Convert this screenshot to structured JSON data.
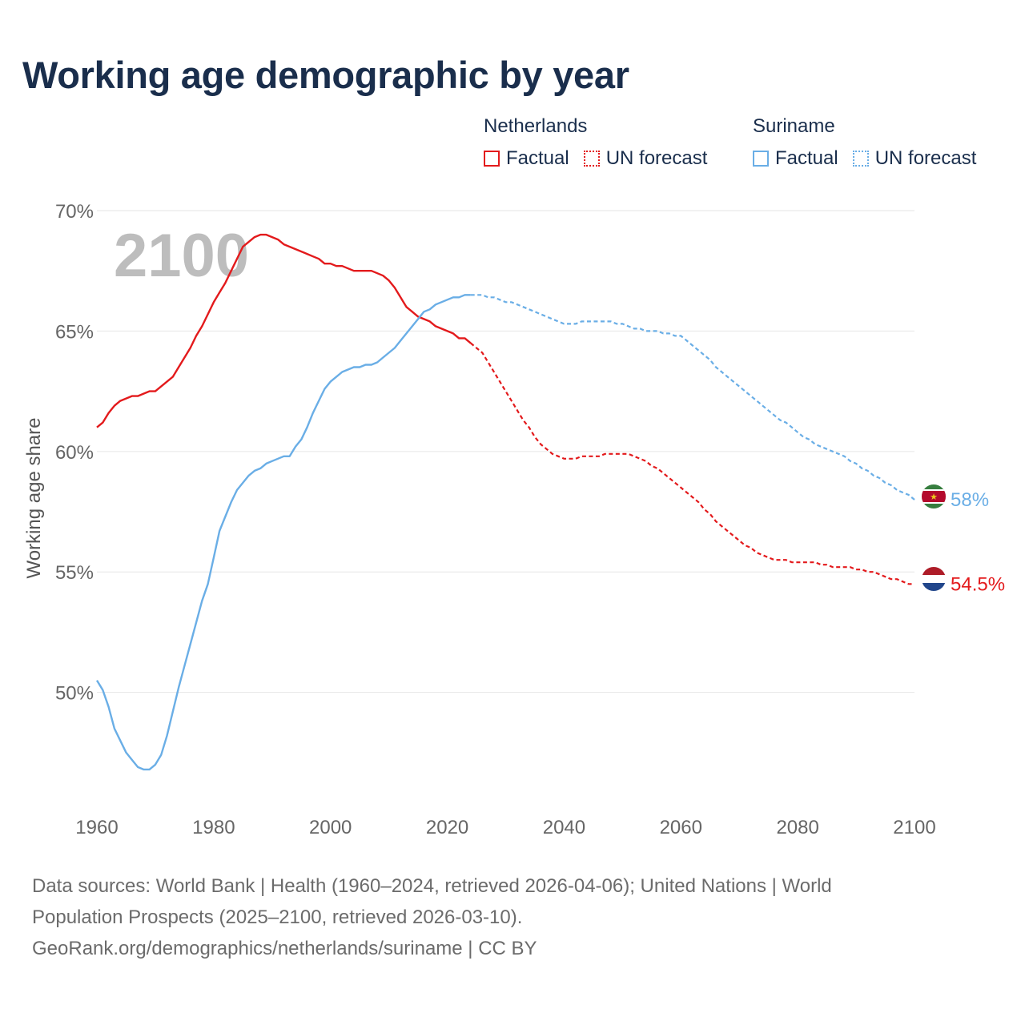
{
  "title": "Working age demographic by year",
  "legend": {
    "groups": [
      {
        "name": "Netherlands",
        "color": "#e31a1c",
        "factual_label": "Factual",
        "forecast_label": "UN forecast"
      },
      {
        "name": "Suriname",
        "color": "#6aaee6",
        "factual_label": "Factual",
        "forecast_label": "UN forecast"
      }
    ]
  },
  "footer": {
    "line1": "Data sources: World Bank | Health (1960–2024, retrieved 2026-04-06); United Nations | World",
    "line2": "Population Prospects (2025–2100, retrieved 2026-03-10).",
    "line3": "GeoRank.org/demographics/netherlands/suriname | CC BY"
  },
  "chart_data": {
    "type": "line",
    "title": "Working age demographic by year",
    "xlabel": "",
    "ylabel": "Working age share",
    "xlim": [
      1960,
      2100
    ],
    "ylim": [
      45.5,
      70
    ],
    "x_ticks": [
      1960,
      1980,
      2000,
      2020,
      2040,
      2060,
      2080,
      2100
    ],
    "y_ticks": [
      50,
      55,
      60,
      65,
      70
    ],
    "y_tick_labels": [
      "50%",
      "55%",
      "60%",
      "65%",
      "70%"
    ],
    "grid": true,
    "year_watermark": "2100",
    "forecast_start": 2024,
    "series": [
      {
        "name": "Netherlands",
        "color": "#e31a1c",
        "end_label": "54.5%",
        "points": [
          [
            1960,
            61.0
          ],
          [
            1961,
            61.2
          ],
          [
            1962,
            61.6
          ],
          [
            1963,
            61.9
          ],
          [
            1964,
            62.1
          ],
          [
            1965,
            62.2
          ],
          [
            1966,
            62.3
          ],
          [
            1967,
            62.3
          ],
          [
            1968,
            62.4
          ],
          [
            1969,
            62.5
          ],
          [
            1970,
            62.5
          ],
          [
            1971,
            62.7
          ],
          [
            1972,
            62.9
          ],
          [
            1973,
            63.1
          ],
          [
            1974,
            63.5
          ],
          [
            1975,
            63.9
          ],
          [
            1976,
            64.3
          ],
          [
            1977,
            64.8
          ],
          [
            1978,
            65.2
          ],
          [
            1979,
            65.7
          ],
          [
            1980,
            66.2
          ],
          [
            1981,
            66.6
          ],
          [
            1982,
            67.0
          ],
          [
            1983,
            67.5
          ],
          [
            1984,
            68.0
          ],
          [
            1985,
            68.5
          ],
          [
            1986,
            68.7
          ],
          [
            1987,
            68.9
          ],
          [
            1988,
            69.0
          ],
          [
            1989,
            69.0
          ],
          [
            1990,
            68.9
          ],
          [
            1991,
            68.8
          ],
          [
            1992,
            68.6
          ],
          [
            1993,
            68.5
          ],
          [
            1994,
            68.4
          ],
          [
            1995,
            68.3
          ],
          [
            1996,
            68.2
          ],
          [
            1997,
            68.1
          ],
          [
            1998,
            68.0
          ],
          [
            1999,
            67.8
          ],
          [
            2000,
            67.8
          ],
          [
            2001,
            67.7
          ],
          [
            2002,
            67.7
          ],
          [
            2003,
            67.6
          ],
          [
            2004,
            67.5
          ],
          [
            2005,
            67.5
          ],
          [
            2006,
            67.5
          ],
          [
            2007,
            67.5
          ],
          [
            2008,
            67.4
          ],
          [
            2009,
            67.3
          ],
          [
            2010,
            67.1
          ],
          [
            2011,
            66.8
          ],
          [
            2012,
            66.4
          ],
          [
            2013,
            66.0
          ],
          [
            2014,
            65.8
          ],
          [
            2015,
            65.6
          ],
          [
            2016,
            65.5
          ],
          [
            2017,
            65.4
          ],
          [
            2018,
            65.2
          ],
          [
            2019,
            65.1
          ],
          [
            2020,
            65.0
          ],
          [
            2021,
            64.9
          ],
          [
            2022,
            64.7
          ],
          [
            2023,
            64.7
          ],
          [
            2024,
            64.5
          ],
          [
            2025,
            64.3
          ],
          [
            2026,
            64.1
          ],
          [
            2027,
            63.7
          ],
          [
            2028,
            63.3
          ],
          [
            2029,
            62.9
          ],
          [
            2030,
            62.5
          ],
          [
            2031,
            62.1
          ],
          [
            2032,
            61.7
          ],
          [
            2033,
            61.3
          ],
          [
            2034,
            61.0
          ],
          [
            2035,
            60.6
          ],
          [
            2036,
            60.3
          ],
          [
            2037,
            60.1
          ],
          [
            2038,
            59.9
          ],
          [
            2039,
            59.8
          ],
          [
            2040,
            59.7
          ],
          [
            2041,
            59.7
          ],
          [
            2042,
            59.7
          ],
          [
            2043,
            59.8
          ],
          [
            2044,
            59.8
          ],
          [
            2045,
            59.8
          ],
          [
            2046,
            59.8
          ],
          [
            2047,
            59.9
          ],
          [
            2048,
            59.9
          ],
          [
            2049,
            59.9
          ],
          [
            2050,
            59.9
          ],
          [
            2051,
            59.9
          ],
          [
            2052,
            59.8
          ],
          [
            2053,
            59.7
          ],
          [
            2054,
            59.6
          ],
          [
            2055,
            59.4
          ],
          [
            2056,
            59.3
          ],
          [
            2057,
            59.1
          ],
          [
            2058,
            58.9
          ],
          [
            2059,
            58.7
          ],
          [
            2060,
            58.5
          ],
          [
            2061,
            58.3
          ],
          [
            2062,
            58.1
          ],
          [
            2063,
            57.9
          ],
          [
            2064,
            57.6
          ],
          [
            2065,
            57.4
          ],
          [
            2066,
            57.1
          ],
          [
            2067,
            56.9
          ],
          [
            2068,
            56.7
          ],
          [
            2069,
            56.5
          ],
          [
            2070,
            56.3
          ],
          [
            2071,
            56.1
          ],
          [
            2072,
            56.0
          ],
          [
            2073,
            55.8
          ],
          [
            2074,
            55.7
          ],
          [
            2075,
            55.6
          ],
          [
            2076,
            55.5
          ],
          [
            2077,
            55.5
          ],
          [
            2078,
            55.5
          ],
          [
            2079,
            55.4
          ],
          [
            2080,
            55.4
          ],
          [
            2081,
            55.4
          ],
          [
            2082,
            55.4
          ],
          [
            2083,
            55.4
          ],
          [
            2084,
            55.3
          ],
          [
            2085,
            55.3
          ],
          [
            2086,
            55.2
          ],
          [
            2087,
            55.2
          ],
          [
            2088,
            55.2
          ],
          [
            2089,
            55.2
          ],
          [
            2090,
            55.1
          ],
          [
            2091,
            55.1
          ],
          [
            2092,
            55.0
          ],
          [
            2093,
            55.0
          ],
          [
            2094,
            54.9
          ],
          [
            2095,
            54.8
          ],
          [
            2096,
            54.7
          ],
          [
            2097,
            54.7
          ],
          [
            2098,
            54.6
          ],
          [
            2099,
            54.5
          ],
          [
            2100,
            54.5
          ]
        ]
      },
      {
        "name": "Suriname",
        "color": "#6aaee6",
        "end_label": "58%",
        "points": [
          [
            1960,
            50.5
          ],
          [
            1961,
            50.1
          ],
          [
            1962,
            49.4
          ],
          [
            1963,
            48.5
          ],
          [
            1964,
            48.0
          ],
          [
            1965,
            47.5
          ],
          [
            1966,
            47.2
          ],
          [
            1967,
            46.9
          ],
          [
            1968,
            46.8
          ],
          [
            1969,
            46.8
          ],
          [
            1970,
            47.0
          ],
          [
            1971,
            47.4
          ],
          [
            1972,
            48.2
          ],
          [
            1973,
            49.2
          ],
          [
            1974,
            50.2
          ],
          [
            1975,
            51.1
          ],
          [
            1976,
            52.0
          ],
          [
            1977,
            52.9
          ],
          [
            1978,
            53.8
          ],
          [
            1979,
            54.5
          ],
          [
            1980,
            55.6
          ],
          [
            1981,
            56.7
          ],
          [
            1982,
            57.3
          ],
          [
            1983,
            57.9
          ],
          [
            1984,
            58.4
          ],
          [
            1985,
            58.7
          ],
          [
            1986,
            59.0
          ],
          [
            1987,
            59.2
          ],
          [
            1988,
            59.3
          ],
          [
            1989,
            59.5
          ],
          [
            1990,
            59.6
          ],
          [
            1991,
            59.7
          ],
          [
            1992,
            59.8
          ],
          [
            1993,
            59.8
          ],
          [
            1994,
            60.2
          ],
          [
            1995,
            60.5
          ],
          [
            1996,
            61.0
          ],
          [
            1997,
            61.6
          ],
          [
            1998,
            62.1
          ],
          [
            1999,
            62.6
          ],
          [
            2000,
            62.9
          ],
          [
            2001,
            63.1
          ],
          [
            2002,
            63.3
          ],
          [
            2003,
            63.4
          ],
          [
            2004,
            63.5
          ],
          [
            2005,
            63.5
          ],
          [
            2006,
            63.6
          ],
          [
            2007,
            63.6
          ],
          [
            2008,
            63.7
          ],
          [
            2009,
            63.9
          ],
          [
            2010,
            64.1
          ],
          [
            2011,
            64.3
          ],
          [
            2012,
            64.6
          ],
          [
            2013,
            64.9
          ],
          [
            2014,
            65.2
          ],
          [
            2015,
            65.5
          ],
          [
            2016,
            65.8
          ],
          [
            2017,
            65.9
          ],
          [
            2018,
            66.1
          ],
          [
            2019,
            66.2
          ],
          [
            2020,
            66.3
          ],
          [
            2021,
            66.4
          ],
          [
            2022,
            66.4
          ],
          [
            2023,
            66.5
          ],
          [
            2024,
            66.5
          ],
          [
            2025,
            66.5
          ],
          [
            2026,
            66.5
          ],
          [
            2027,
            66.4
          ],
          [
            2028,
            66.4
          ],
          [
            2029,
            66.3
          ],
          [
            2030,
            66.2
          ],
          [
            2031,
            66.2
          ],
          [
            2032,
            66.1
          ],
          [
            2033,
            66.0
          ],
          [
            2034,
            65.9
          ],
          [
            2035,
            65.8
          ],
          [
            2036,
            65.7
          ],
          [
            2037,
            65.6
          ],
          [
            2038,
            65.5
          ],
          [
            2039,
            65.4
          ],
          [
            2040,
            65.3
          ],
          [
            2041,
            65.3
          ],
          [
            2042,
            65.3
          ],
          [
            2043,
            65.4
          ],
          [
            2044,
            65.4
          ],
          [
            2045,
            65.4
          ],
          [
            2046,
            65.4
          ],
          [
            2047,
            65.4
          ],
          [
            2048,
            65.4
          ],
          [
            2049,
            65.3
          ],
          [
            2050,
            65.3
          ],
          [
            2051,
            65.2
          ],
          [
            2052,
            65.1
          ],
          [
            2053,
            65.1
          ],
          [
            2054,
            65.0
          ],
          [
            2055,
            65.0
          ],
          [
            2056,
            65.0
          ],
          [
            2057,
            64.9
          ],
          [
            2058,
            64.9
          ],
          [
            2059,
            64.8
          ],
          [
            2060,
            64.8
          ],
          [
            2061,
            64.6
          ],
          [
            2062,
            64.4
          ],
          [
            2063,
            64.2
          ],
          [
            2064,
            64.0
          ],
          [
            2065,
            63.8
          ],
          [
            2066,
            63.5
          ],
          [
            2067,
            63.3
          ],
          [
            2068,
            63.1
          ],
          [
            2069,
            62.9
          ],
          [
            2070,
            62.7
          ],
          [
            2071,
            62.5
          ],
          [
            2072,
            62.3
          ],
          [
            2073,
            62.1
          ],
          [
            2074,
            61.9
          ],
          [
            2075,
            61.7
          ],
          [
            2076,
            61.5
          ],
          [
            2077,
            61.3
          ],
          [
            2078,
            61.2
          ],
          [
            2079,
            61.0
          ],
          [
            2080,
            60.8
          ],
          [
            2081,
            60.6
          ],
          [
            2082,
            60.5
          ],
          [
            2083,
            60.3
          ],
          [
            2084,
            60.2
          ],
          [
            2085,
            60.1
          ],
          [
            2086,
            60.0
          ],
          [
            2087,
            59.9
          ],
          [
            2088,
            59.8
          ],
          [
            2089,
            59.6
          ],
          [
            2090,
            59.5
          ],
          [
            2091,
            59.3
          ],
          [
            2092,
            59.2
          ],
          [
            2093,
            59.0
          ],
          [
            2094,
            58.9
          ],
          [
            2095,
            58.7
          ],
          [
            2096,
            58.6
          ],
          [
            2097,
            58.4
          ],
          [
            2098,
            58.3
          ],
          [
            2099,
            58.2
          ],
          [
            2100,
            58.0
          ]
        ]
      }
    ]
  }
}
